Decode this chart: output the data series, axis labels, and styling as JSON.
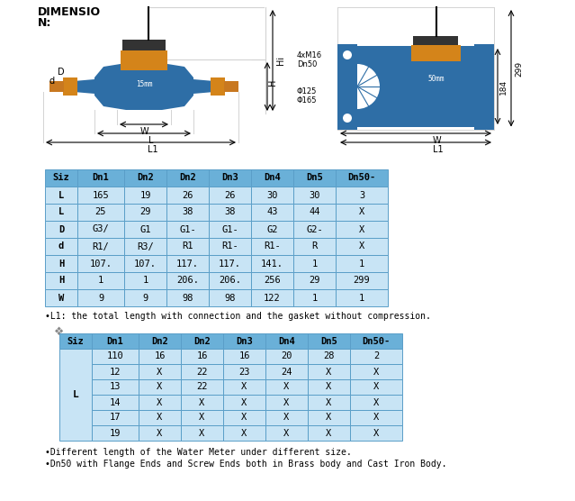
{
  "title_line1": "DIMENSIO",
  "title_line2": "N:",
  "table1_headers": [
    "Siz",
    "Dn1",
    "Dn2",
    "Dn2",
    "Dn3",
    "Dn4",
    "Dn5",
    "Dn50-"
  ],
  "table1_rows": [
    [
      "L",
      "165",
      "19",
      "26",
      "26",
      "30",
      "30",
      "3"
    ],
    [
      "L",
      "25",
      "29",
      "38",
      "38",
      "43",
      "44",
      "X"
    ],
    [
      "D",
      "G3/",
      "G1",
      "G1-",
      "G1-",
      "G2",
      "G2-",
      "X"
    ],
    [
      "d",
      "R1/",
      "R3/",
      "R1",
      "R1-",
      "R1-",
      "R",
      "X"
    ],
    [
      "H",
      "107.",
      "107.",
      "117.",
      "117.",
      "141.",
      "1",
      "1"
    ],
    [
      "H",
      "1",
      "1",
      "206.",
      "206.",
      "256",
      "29",
      "299"
    ],
    [
      "W",
      "9",
      "9",
      "98",
      "98",
      "122",
      "1",
      "1"
    ]
  ],
  "note1": "•L1: the total length with connection and the gasket without compression.",
  "table2_headers": [
    "Siz",
    "Dn1",
    "Dn2",
    "Dn2",
    "Dn3",
    "Dn4",
    "Dn5",
    "Dn50-"
  ],
  "table2_col1": "L",
  "table2_rows": [
    [
      "110",
      "16",
      "16",
      "16",
      "20",
      "28",
      "2"
    ],
    [
      "12",
      "X",
      "22",
      "23",
      "24",
      "X",
      "X"
    ],
    [
      "13",
      "X",
      "22",
      "X",
      "X",
      "X",
      "X"
    ],
    [
      "14",
      "X",
      "X",
      "X",
      "X",
      "X",
      "X"
    ],
    [
      "17",
      "X",
      "X",
      "X",
      "X",
      "X",
      "X"
    ],
    [
      "19",
      "X",
      "X",
      "X",
      "X",
      "X",
      "X"
    ]
  ],
  "note2": "•Different length of the Water Meter under different size.",
  "note3": "•Dn50 with Flange Ends and Screw Ends both in Brass body and Cast Iron Body.",
  "header_bg": "#6ab0d8",
  "row_bg_light": "#c8e4f5",
  "border_color": "#5a9ec8",
  "bg_color": "#ffffff",
  "blue_body": "#2e6ea6",
  "orange_top": "#d4841a",
  "dark_gray": "#333333"
}
